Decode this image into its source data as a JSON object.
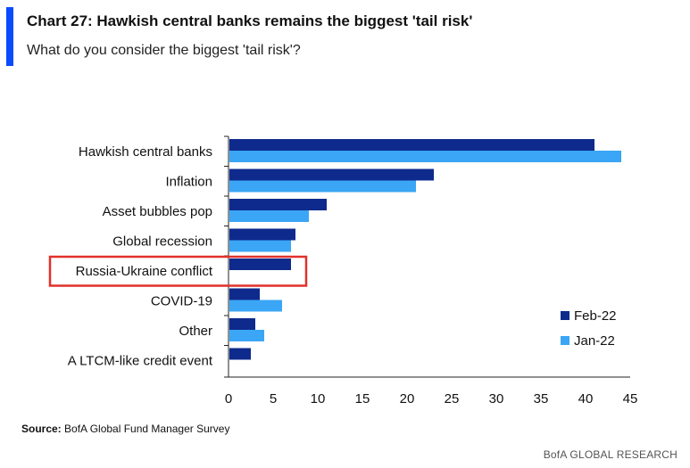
{
  "header": {
    "title": "Chart 27: Hawkish central banks remains the biggest 'tail risk'",
    "subtitle": "What do you consider the biggest 'tail risk'?"
  },
  "footer": {
    "source_label": "Source:",
    "source_text": " BofA Global Fund Manager Survey",
    "brand": "BofA GLOBAL RESEARCH"
  },
  "highlight": {
    "category": "Russia-Ukraine conflict",
    "color": "#e0312a"
  },
  "chart_data": {
    "type": "bar",
    "orientation": "horizontal",
    "title": "Chart 27: Hawkish central banks remains the biggest 'tail risk'",
    "subtitle": "What do you consider the biggest 'tail risk'?",
    "categories": [
      "Hawkish central banks",
      "Inflation",
      "Asset bubbles pop",
      "Global recession",
      "Russia-Ukraine conflict",
      "COVID-19",
      "Other",
      "A LTCM-like credit event"
    ],
    "series": [
      {
        "name": "Feb-22",
        "color": "#0e2a8c",
        "values": [
          41,
          23,
          11,
          7.5,
          7,
          3.5,
          3,
          2.5
        ]
      },
      {
        "name": "Jan-22",
        "color": "#3aa6f5",
        "values": [
          44,
          21,
          9,
          7,
          0,
          6,
          4,
          0
        ]
      }
    ],
    "xlim": [
      0,
      45
    ],
    "xticks": [
      "0",
      "5",
      "10",
      "15",
      "20",
      "25",
      "30",
      "35",
      "40",
      "45"
    ],
    "grid": false,
    "legend_position": "bottom-right"
  }
}
